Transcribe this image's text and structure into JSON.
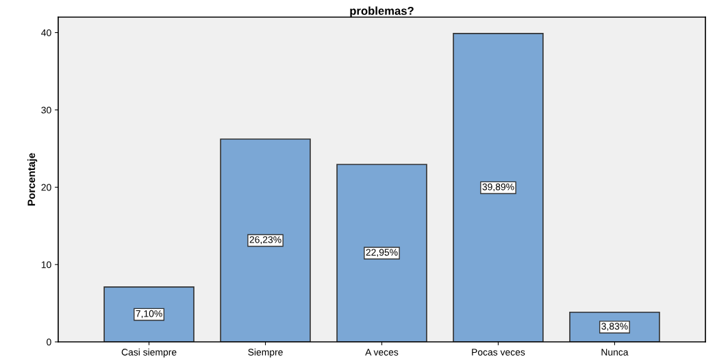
{
  "chart_data": {
    "type": "bar",
    "title": "problemas?",
    "ylabel": "Porcentaje",
    "categories": [
      "Casi siempre",
      "Siempre",
      "A veces",
      "Pocas veces",
      "Nunca"
    ],
    "values": [
      7.1,
      26.23,
      22.95,
      39.89,
      3.83
    ],
    "value_labels": [
      "7,10%",
      "26,23%",
      "22,95%",
      "39,89%",
      "3,83%"
    ],
    "color": "#7ba7d5",
    "ylim": [
      0,
      42
    ],
    "yticks": [
      0,
      10,
      20,
      30,
      40
    ],
    "grid": false,
    "legend": false
  }
}
